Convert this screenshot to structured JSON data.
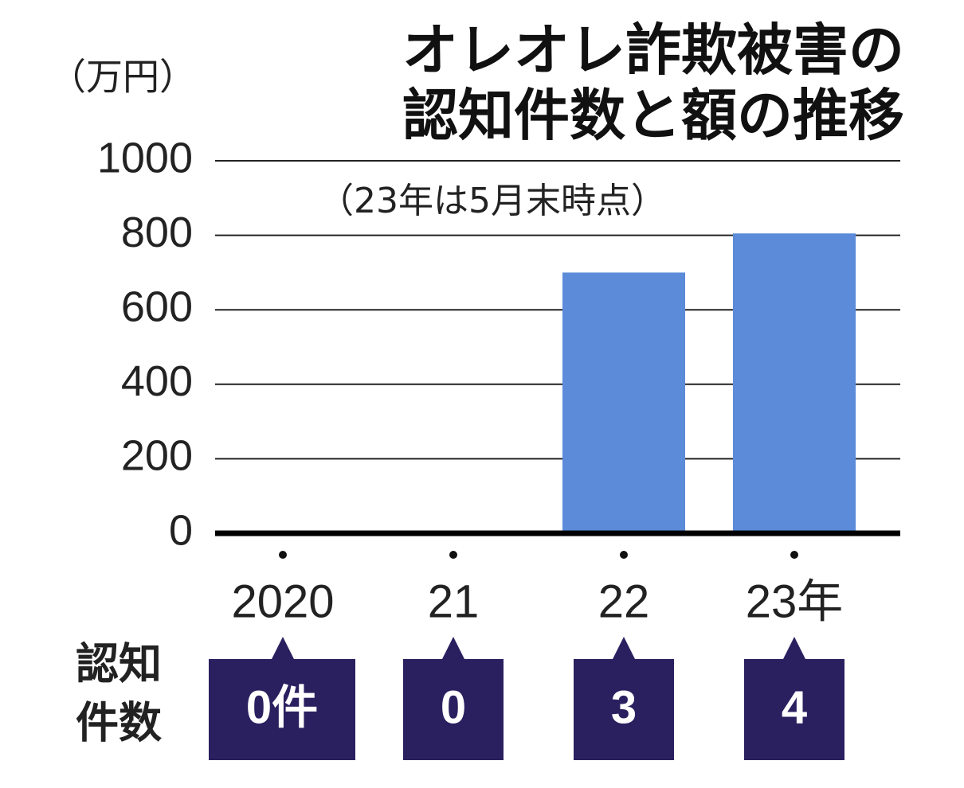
{
  "chart_data": {
    "type": "bar",
    "title": [
      "オレオレ詐欺被害の",
      "認知件数と額の推移"
    ],
    "subtitle": "（23年は5月末時点）",
    "y_label": "（万円）",
    "categories": [
      "2020",
      "21",
      "22",
      "23年"
    ],
    "values": [
      0,
      0,
      700,
      805
    ],
    "color": "#5b8bd9",
    "ylim": [
      0,
      1000
    ],
    "yticks": [
      0,
      200,
      400,
      600,
      800,
      1000
    ],
    "grid": true,
    "counts": {
      "label": [
        "認知",
        "件数"
      ],
      "color": "#2a2060",
      "values": [
        0,
        0,
        3,
        4
      ],
      "value_labels": [
        "0件",
        "0",
        "3",
        "4"
      ]
    }
  }
}
